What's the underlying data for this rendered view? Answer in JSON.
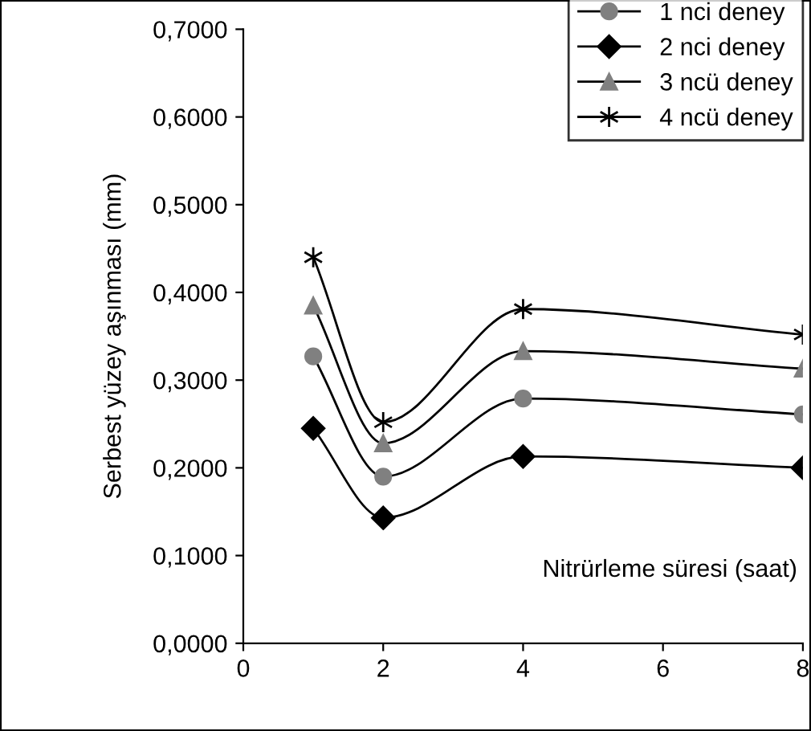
{
  "chart_data": {
    "type": "line",
    "xlabel": "Nitrürleme süresi (saat)",
    "ylabel": "Serbest yüzey aşınması (mm)",
    "x": [
      1,
      2,
      4,
      8
    ],
    "series": [
      {
        "name": "1 nci deney",
        "color": "#808080",
        "marker": "circle",
        "values": [
          0.327,
          0.19,
          0.279,
          0.261
        ]
      },
      {
        "name": "2 nci deney",
        "color": "#000000",
        "marker": "diamond",
        "values": [
          0.245,
          0.143,
          0.213,
          0.2
        ]
      },
      {
        "name": "3 ncü deney",
        "color": "#808080",
        "marker": "triangle",
        "values": [
          0.385,
          0.228,
          0.333,
          0.313
        ]
      },
      {
        "name": "4 ncü deney",
        "color": "#000000",
        "marker": "cross",
        "values": [
          0.44,
          0.252,
          0.381,
          0.352
        ]
      }
    ],
    "xlim": [
      0,
      8
    ],
    "xticks": [
      0,
      2,
      4,
      6,
      8
    ],
    "ylim": [
      0,
      0.7
    ],
    "yticks": [
      {
        "value": 0,
        "label": "0,0000"
      },
      {
        "value": 0.1,
        "label": "0,1000"
      },
      {
        "value": 0.2,
        "label": "0,2000"
      },
      {
        "value": 0.3,
        "label": "0,3000"
      },
      {
        "value": 0.4,
        "label": "0,4000"
      },
      {
        "value": 0.5,
        "label": "0,5000"
      },
      {
        "value": 0.6,
        "label": "0,6000"
      },
      {
        "value": 0.7,
        "label": "0,7000"
      }
    ],
    "grid": false,
    "legend": "top right",
    "line_style": "solid"
  }
}
